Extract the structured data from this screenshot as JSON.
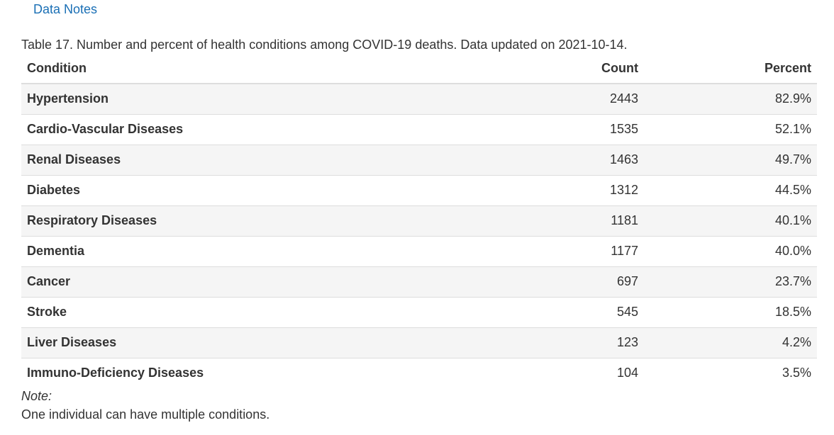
{
  "header": {
    "data_notes_link": "Data Notes"
  },
  "table": {
    "caption": "Table 17. Number and percent of health conditions among COVID-19 deaths. Data updated on 2021-10-14.",
    "columns": [
      "Condition",
      "Count",
      "Percent"
    ],
    "rows": [
      {
        "condition": "Hypertension",
        "count": "2443",
        "percent": "82.9%"
      },
      {
        "condition": "Cardio-Vascular Diseases",
        "count": "1535",
        "percent": "52.1%"
      },
      {
        "condition": "Renal Diseases",
        "count": "1463",
        "percent": "49.7%"
      },
      {
        "condition": "Diabetes",
        "count": "1312",
        "percent": "44.5%"
      },
      {
        "condition": "Respiratory Diseases",
        "count": "1181",
        "percent": "40.1%"
      },
      {
        "condition": "Dementia",
        "count": "1177",
        "percent": "40.0%"
      },
      {
        "condition": "Cancer",
        "count": "697",
        "percent": "23.7%"
      },
      {
        "condition": "Stroke",
        "count": "545",
        "percent": "18.5%"
      },
      {
        "condition": "Liver Diseases",
        "count": "123",
        "percent": "4.2%"
      },
      {
        "condition": "Immuno-Deficiency Diseases",
        "count": "104",
        "percent": "3.5%"
      }
    ]
  },
  "note": {
    "label": "Note:",
    "text": "One individual can have multiple conditions."
  },
  "colors": {
    "link": "#1a6fb5",
    "text": "#333333",
    "stripe": "#f5f5f5",
    "border": "#dddddd"
  }
}
